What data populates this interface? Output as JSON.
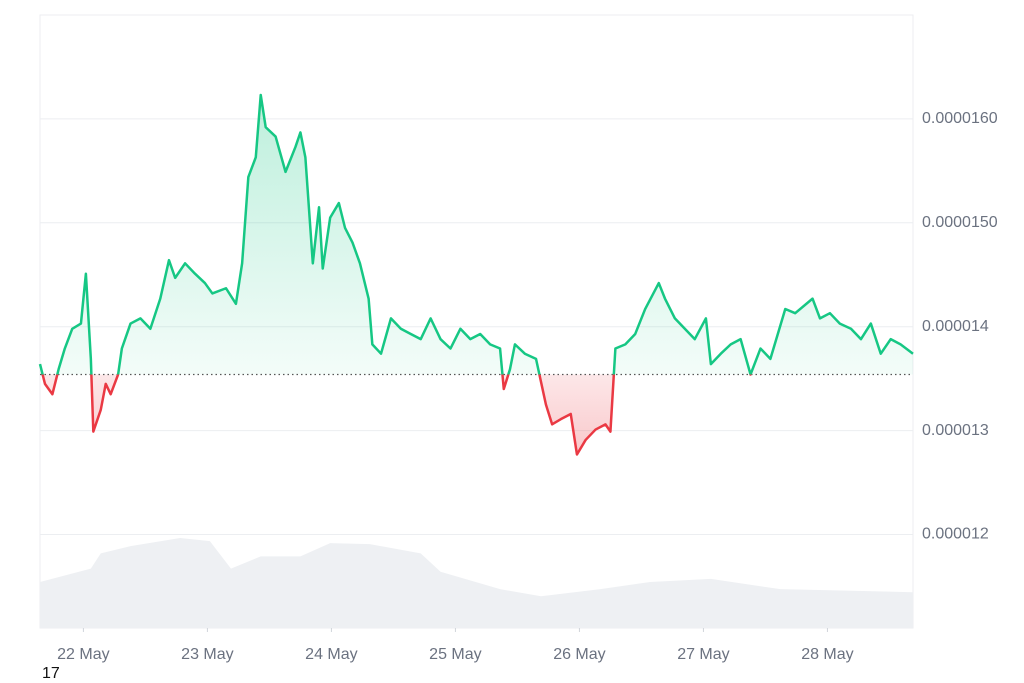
{
  "chart_data": {
    "type": "line",
    "x": [
      -0.35,
      -0.31,
      -0.25,
      -0.2,
      -0.15,
      -0.09,
      -0.02,
      0.02,
      0.06,
      0.08,
      0.14,
      0.18,
      0.22,
      0.28,
      0.31,
      0.38,
      0.46,
      0.54,
      0.62,
      0.69,
      0.74,
      0.82,
      0.9,
      0.98,
      1.04,
      1.15,
      1.23,
      1.28,
      1.33,
      1.39,
      1.43,
      1.47,
      1.55,
      1.63,
      1.71,
      1.75,
      1.79,
      1.85,
      1.9,
      1.93,
      1.99,
      2.06,
      2.11,
      2.17,
      2.23,
      2.3,
      2.33,
      2.4,
      2.48,
      2.56,
      2.64,
      2.72,
      2.8,
      2.88,
      2.96,
      3.04,
      3.12,
      3.2,
      3.28,
      3.36,
      3.39,
      3.44,
      3.48,
      3.56,
      3.65,
      3.73,
      3.78,
      3.85,
      3.93,
      3.98,
      4.05,
      4.13,
      4.21,
      4.25,
      4.29,
      4.37,
      4.45,
      4.53,
      4.64,
      4.69,
      4.77,
      4.85,
      4.93,
      5.02,
      5.06,
      5.14,
      5.22,
      5.3,
      5.38,
      5.46,
      5.54,
      5.66,
      5.74,
      5.88,
      5.94,
      6.02,
      6.1,
      6.19,
      6.27,
      6.35,
      6.43,
      6.51,
      6.59,
      6.69
    ],
    "series": [
      {
        "color": "#16c784",
        "below_color": "#ea3943",
        "values": [
          1.364e-05,
          1.345e-05,
          1.335e-05,
          1.359e-05,
          1.379e-05,
          1.398e-05,
          1.403e-05,
          1.451e-05,
          1.369e-05,
          1.299e-05,
          1.32e-05,
          1.345e-05,
          1.335e-05,
          1.354e-05,
          1.379e-05,
          1.403e-05,
          1.408e-05,
          1.398e-05,
          1.427e-05,
          1.464e-05,
          1.447e-05,
          1.461e-05,
          1.451e-05,
          1.442e-05,
          1.432e-05,
          1.437e-05,
          1.422e-05,
          1.461e-05,
          1.544e-05,
          1.563e-05,
          1.623e-05,
          1.592e-05,
          1.583e-05,
          1.549e-05,
          1.573e-05,
          1.587e-05,
          1.563e-05,
          1.461e-05,
          1.515e-05,
          1.456e-05,
          1.505e-05,
          1.519e-05,
          1.495e-05,
          1.481e-05,
          1.461e-05,
          1.427e-05,
          1.383e-05,
          1.374e-05,
          1.408e-05,
          1.398e-05,
          1.393e-05,
          1.388e-05,
          1.408e-05,
          1.388e-05,
          1.379e-05,
          1.398e-05,
          1.388e-05,
          1.393e-05,
          1.383e-05,
          1.379e-05,
          1.34e-05,
          1.359e-05,
          1.383e-05,
          1.374e-05,
          1.369e-05,
          1.325e-05,
          1.306e-05,
          1.311e-05,
          1.316e-05,
          1.277e-05,
          1.291e-05,
          1.301e-05,
          1.306e-05,
          1.299e-05,
          1.379e-05,
          1.383e-05,
          1.393e-05,
          1.417e-05,
          1.442e-05,
          1.427e-05,
          1.408e-05,
          1.398e-05,
          1.388e-05,
          1.408e-05,
          1.364e-05,
          1.374e-05,
          1.383e-05,
          1.388e-05,
          1.354e-05,
          1.379e-05,
          1.369e-05,
          1.417e-05,
          1.413e-05,
          1.427e-05,
          1.408e-05,
          1.413e-05,
          1.403e-05,
          1.398e-05,
          1.388e-05,
          1.403e-05,
          1.374e-05,
          1.388e-05,
          1.383e-05,
          1.374e-05
        ]
      }
    ],
    "baseline": 1.354e-05,
    "volume": {
      "color": "#eef0f3",
      "x": [
        -0.35,
        0.06,
        0.14,
        0.38,
        0.78,
        1.02,
        1.19,
        1.43,
        1.75,
        1.99,
        2.31,
        2.72,
        2.88,
        3.36,
        3.69,
        4.17,
        4.57,
        5.06,
        5.62,
        6.69
      ],
      "values": [
        45,
        58,
        73,
        80,
        88,
        85,
        58,
        70,
        70,
        83,
        82,
        73,
        55,
        38,
        31,
        38,
        45,
        48,
        38,
        35
      ]
    },
    "xlim": [
      -0.35,
      6.69
    ],
    "xticks": [
      {
        "value": 0,
        "label": "22 May"
      },
      {
        "value": 1,
        "label": "23 May"
      },
      {
        "value": 2,
        "label": "24 May"
      },
      {
        "value": 3,
        "label": "25 May"
      },
      {
        "value": 4,
        "label": "26 May"
      },
      {
        "value": 5,
        "label": "27 May"
      },
      {
        "value": 6,
        "label": "28 May"
      }
    ],
    "ylim": [
      1.11e-05,
      1.7e-05
    ],
    "yticks": [
      {
        "value": 1.2e-05,
        "label": "0.000012"
      },
      {
        "value": 1.3e-05,
        "label": "0.000013"
      },
      {
        "value": 1.4e-05,
        "label": "0.000014"
      },
      {
        "value": 1.5e-05,
        "label": "0.0000150"
      },
      {
        "value": 1.6e-05,
        "label": "0.0000160"
      }
    ],
    "grid": true,
    "footer_text": "17"
  }
}
